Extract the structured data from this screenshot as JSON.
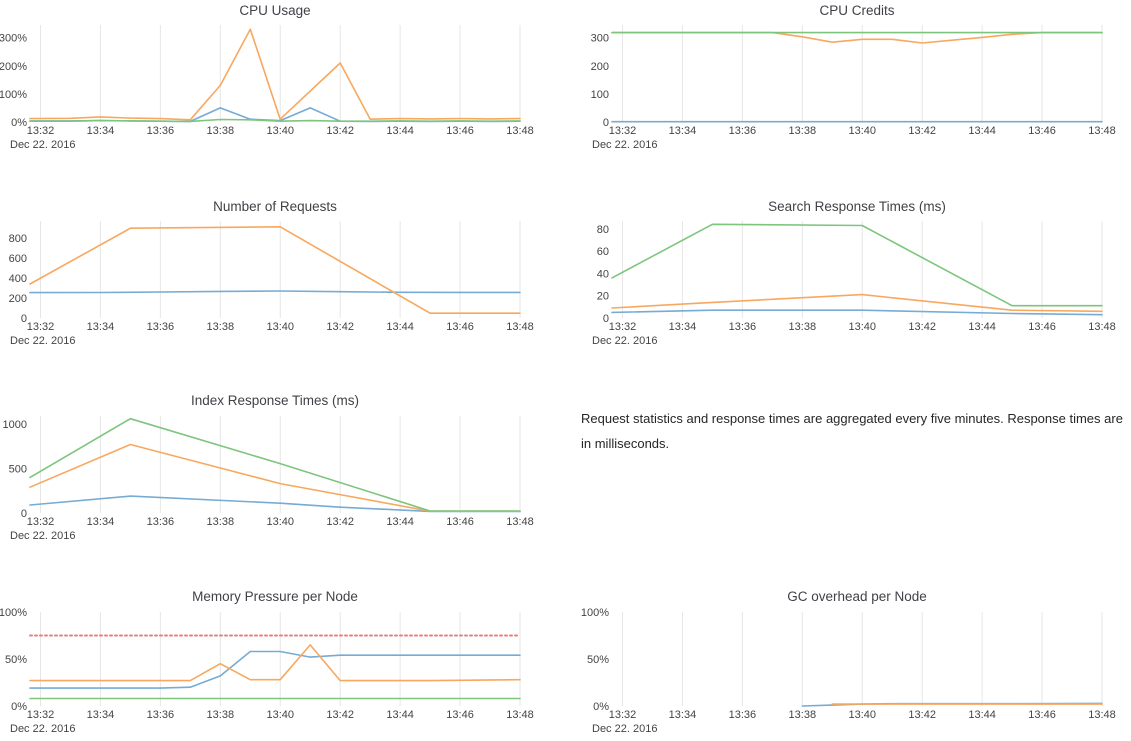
{
  "page": {
    "background": "#ffffff"
  },
  "colors": {
    "blue": "#76abd4",
    "orange": "#f8a85e",
    "green": "#7dc57d",
    "red": "#e87e7e",
    "grid": "#e6e6e6",
    "axis_label": "#444444",
    "title": "#404247",
    "note_text": "#262626"
  },
  "x_axis": {
    "xlim": [
      31.65,
      48
    ],
    "tick_values": [
      32,
      34,
      36,
      38,
      40,
      42,
      44,
      46,
      48
    ],
    "tick_labels": [
      "13:32",
      "13:34",
      "13:36",
      "13:38",
      "13:40",
      "13:42",
      "13:44",
      "13:46",
      "13:48"
    ],
    "date_label": "Dec 22. 2016"
  },
  "note": {
    "text": "Request statistics and response times are aggregated every five minutes. Response times are in milliseconds."
  },
  "chart_data": [
    {
      "type": "line",
      "title": "CPU Usage",
      "ylim": [
        0,
        345
      ],
      "yticks": [
        {
          "v": 0,
          "label": "0%"
        },
        {
          "v": 100,
          "label": "100%"
        },
        {
          "v": 200,
          "label": "200%"
        },
        {
          "v": 300,
          "label": "300%"
        }
      ],
      "series": [
        {
          "color": "blue",
          "points": [
            [
              31.65,
              4
            ],
            [
              33,
              4
            ],
            [
              34,
              5
            ],
            [
              35,
              4
            ],
            [
              36,
              3
            ],
            [
              37,
              2
            ],
            [
              38,
              50
            ],
            [
              39,
              10
            ],
            [
              40,
              5
            ],
            [
              41,
              50
            ],
            [
              42,
              3
            ],
            [
              43,
              2
            ],
            [
              44,
              3
            ],
            [
              45,
              2
            ],
            [
              46,
              3
            ],
            [
              47,
              2
            ],
            [
              48,
              3
            ]
          ]
        },
        {
          "color": "orange",
          "points": [
            [
              31.65,
              12
            ],
            [
              33,
              13
            ],
            [
              34,
              18
            ],
            [
              35,
              14
            ],
            [
              36,
              12
            ],
            [
              37,
              8
            ],
            [
              38,
              130
            ],
            [
              39,
              330
            ],
            [
              40,
              10
            ],
            [
              42,
              210
            ],
            [
              43,
              10
            ],
            [
              44,
              12
            ],
            [
              45,
              11
            ],
            [
              46,
              12
            ],
            [
              47,
              11
            ],
            [
              48,
              12
            ]
          ]
        },
        {
          "color": "green",
          "points": [
            [
              31.65,
              3
            ],
            [
              33,
              3
            ],
            [
              34,
              5
            ],
            [
              35,
              4
            ],
            [
              36,
              3
            ],
            [
              37,
              2
            ],
            [
              38,
              9
            ],
            [
              39,
              8
            ],
            [
              40,
              3
            ],
            [
              41,
              5
            ],
            [
              42,
              3
            ],
            [
              43,
              3
            ],
            [
              44,
              4
            ],
            [
              45,
              3
            ],
            [
              46,
              4
            ],
            [
              47,
              3
            ],
            [
              48,
              4
            ]
          ]
        }
      ]
    },
    {
      "type": "line",
      "title": "CPU Credits",
      "ylim": [
        0,
        345
      ],
      "yticks": [
        {
          "v": 0,
          "label": "0"
        },
        {
          "v": 100,
          "label": "100"
        },
        {
          "v": 200,
          "label": "200"
        },
        {
          "v": 300,
          "label": "300"
        }
      ],
      "series": [
        {
          "color": "blue",
          "points": [
            [
              31.65,
              1
            ],
            [
              48,
              1
            ]
          ]
        },
        {
          "color": "orange",
          "points": [
            [
              31.65,
              318
            ],
            [
              37,
              318
            ],
            [
              38,
              303
            ],
            [
              39,
              284
            ],
            [
              40,
              294
            ],
            [
              41,
              294
            ],
            [
              42,
              281
            ],
            [
              43,
              291
            ],
            [
              44,
              301
            ],
            [
              45,
              312
            ],
            [
              46,
              318
            ],
            [
              48,
              318
            ]
          ]
        },
        {
          "color": "green",
          "points": [
            [
              31.65,
              318
            ],
            [
              48,
              318
            ]
          ]
        }
      ]
    },
    {
      "type": "line",
      "title": "Number of Requests",
      "ylim": [
        0,
        970
      ],
      "yticks": [
        {
          "v": 0,
          "label": "0"
        },
        {
          "v": 200,
          "label": "200"
        },
        {
          "v": 400,
          "label": "400"
        },
        {
          "v": 600,
          "label": "600"
        },
        {
          "v": 800,
          "label": "800"
        }
      ],
      "series": [
        {
          "color": "blue",
          "points": [
            [
              31.65,
              254
            ],
            [
              34,
              255
            ],
            [
              36,
              260
            ],
            [
              38,
              266
            ],
            [
              40,
              270
            ],
            [
              42,
              263
            ],
            [
              44,
              257
            ],
            [
              46,
              256
            ],
            [
              48,
              256
            ]
          ]
        },
        {
          "color": "orange",
          "points": [
            [
              31.65,
              340
            ],
            [
              35,
              898
            ],
            [
              40,
              912
            ],
            [
              45,
              48
            ],
            [
              48,
              48
            ]
          ]
        }
      ]
    },
    {
      "type": "line",
      "title": "Search Response Times (ms)",
      "ylim": [
        0,
        87
      ],
      "yticks": [
        {
          "v": 0,
          "label": "0"
        },
        {
          "v": 20,
          "label": "20"
        },
        {
          "v": 40,
          "label": "40"
        },
        {
          "v": 60,
          "label": "60"
        },
        {
          "v": 80,
          "label": "80"
        }
      ],
      "series": [
        {
          "color": "blue",
          "points": [
            [
              31.65,
              5
            ],
            [
              35,
              7
            ],
            [
              40,
              7
            ],
            [
              45,
              4
            ],
            [
              48,
              3
            ]
          ]
        },
        {
          "color": "orange",
          "points": [
            [
              31.65,
              9
            ],
            [
              35,
              14
            ],
            [
              40,
              21
            ],
            [
              45,
              7
            ],
            [
              48,
              6
            ]
          ]
        },
        {
          "color": "green",
          "points": [
            [
              31.65,
              36
            ],
            [
              35,
              84
            ],
            [
              40,
              83
            ],
            [
              45,
              11
            ],
            [
              48,
              11
            ]
          ]
        }
      ]
    },
    {
      "type": "line",
      "title": "Index Response Times (ms)",
      "ylim": [
        0,
        1090
      ],
      "yticks": [
        {
          "v": 0,
          "label": "0"
        },
        {
          "v": 500,
          "label": "500"
        },
        {
          "v": 1000,
          "label": "1000"
        }
      ],
      "series": [
        {
          "color": "blue",
          "points": [
            [
              31.65,
              90
            ],
            [
              35,
              190
            ],
            [
              40,
              110
            ],
            [
              42,
              65
            ],
            [
              45,
              18
            ],
            [
              48,
              18
            ]
          ]
        },
        {
          "color": "orange",
          "points": [
            [
              31.65,
              290
            ],
            [
              35,
              770
            ],
            [
              40,
              330
            ],
            [
              45,
              20
            ],
            [
              48,
              20
            ]
          ]
        },
        {
          "color": "green",
          "points": [
            [
              31.65,
              400
            ],
            [
              35,
              1060
            ],
            [
              40,
              555
            ],
            [
              45,
              22
            ],
            [
              48,
              22
            ]
          ]
        }
      ]
    },
    {
      "type": "line",
      "title": "Memory Pressure per Node",
      "ylim": [
        0,
        100
      ],
      "yticks": [
        {
          "v": 0,
          "label": "0%"
        },
        {
          "v": 50,
          "label": "50%"
        },
        {
          "v": 100,
          "label": "100%"
        }
      ],
      "series": [
        {
          "color": "green",
          "points": [
            [
              31.65,
              8
            ],
            [
              48,
              8
            ]
          ]
        },
        {
          "color": "blue",
          "points": [
            [
              31.65,
              19
            ],
            [
              36,
              19
            ],
            [
              37,
              20
            ],
            [
              38,
              32
            ],
            [
              39,
              58
            ],
            [
              40,
              58
            ],
            [
              41,
              52
            ],
            [
              42,
              54
            ],
            [
              48,
              54
            ]
          ]
        },
        {
          "color": "orange",
          "points": [
            [
              31.65,
              27
            ],
            [
              37,
              27
            ],
            [
              38,
              45
            ],
            [
              39,
              28
            ],
            [
              40,
              28
            ],
            [
              41,
              65
            ],
            [
              42,
              27
            ],
            [
              45,
              27
            ],
            [
              48,
              28
            ]
          ]
        },
        {
          "color": "red",
          "dash": "dot",
          "points": [
            [
              31.65,
              75
            ],
            [
              48,
              75
            ]
          ]
        }
      ]
    },
    {
      "type": "line",
      "title": "GC overhead per Node",
      "ylim": [
        0,
        100
      ],
      "yticks": [
        {
          "v": 0,
          "label": "0%"
        },
        {
          "v": 50,
          "label": "50%"
        },
        {
          "v": 100,
          "label": "100%"
        }
      ],
      "series": [
        {
          "color": "blue",
          "points": [
            [
              38,
              0
            ],
            [
              39,
              1
            ],
            [
              40,
              2
            ],
            [
              41,
              2.5
            ],
            [
              44,
              2.5
            ],
            [
              48,
              2.8
            ]
          ]
        },
        {
          "color": "orange",
          "points": [
            [
              39,
              2
            ],
            [
              44,
              2
            ],
            [
              48,
              2
            ]
          ]
        }
      ]
    }
  ]
}
